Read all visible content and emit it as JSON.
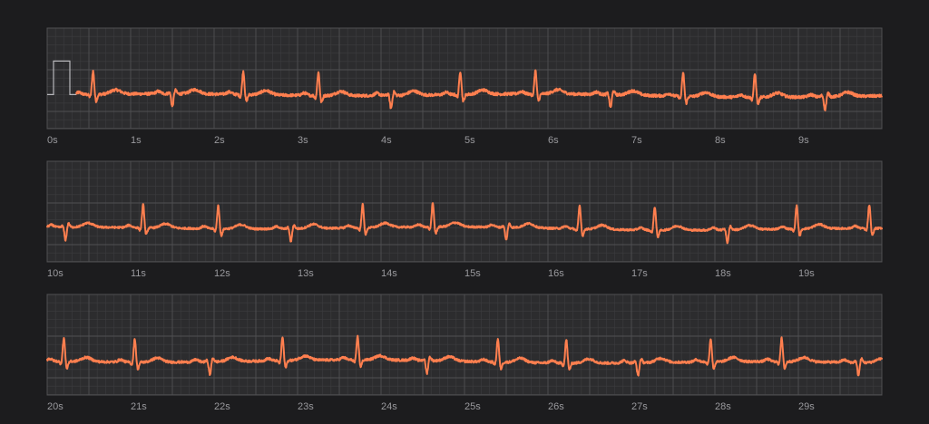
{
  "colors": {
    "background": "#1c1c1e",
    "grid_bg": "#2c2c2e",
    "grid_minor": "#3c3c3f",
    "grid_major": "#505053",
    "trace": "#ff7f4f",
    "calibration": "#b8b8bc",
    "tick_label": "#9a9a9e"
  },
  "chart_data": {
    "type": "line",
    "title": "",
    "xlabel": "",
    "ylabel": "",
    "grid": true,
    "legend": "none",
    "sample_rate_hz": 50,
    "strips": [
      {
        "xlim": [
          0,
          10
        ],
        "tick_labels": [
          "0s",
          "1s",
          "2s",
          "3s",
          "4s",
          "5s",
          "6s",
          "7s",
          "8s",
          "9s"
        ],
        "trace_start_s": 0.35,
        "calibration_pulse": true,
        "r_peaks_s": [
          0.55,
          1.5,
          2.35,
          3.25,
          4.12,
          4.95,
          5.85,
          6.75,
          7.62,
          8.48,
          9.32
        ],
        "noise_amplitude_mv": 0.06
      },
      {
        "xlim": [
          10,
          20
        ],
        "tick_labels": [
          "10s",
          "11s",
          "12s",
          "13s",
          "14s",
          "15s",
          "16s",
          "17s",
          "18s",
          "19s"
        ],
        "trace_start_s": 10.0,
        "calibration_pulse": false,
        "r_peaks_s": [
          10.22,
          11.15,
          12.05,
          12.92,
          13.78,
          14.62,
          15.5,
          16.38,
          17.28,
          18.15,
          18.98,
          19.85
        ],
        "noise_amplitude_mv": 0.04
      },
      {
        "xlim": [
          20,
          30
        ],
        "tick_labels": [
          "20s",
          "21s",
          "22s",
          "23s",
          "24s",
          "25s",
          "26s",
          "27s",
          "28s",
          "29s"
        ],
        "trace_start_s": 20.0,
        "calibration_pulse": false,
        "r_peaks_s": [
          20.2,
          21.05,
          21.95,
          22.82,
          23.72,
          24.55,
          25.4,
          26.22,
          27.08,
          27.95,
          28.8,
          29.72
        ],
        "noise_amplitude_mv": 0.05
      }
    ]
  }
}
